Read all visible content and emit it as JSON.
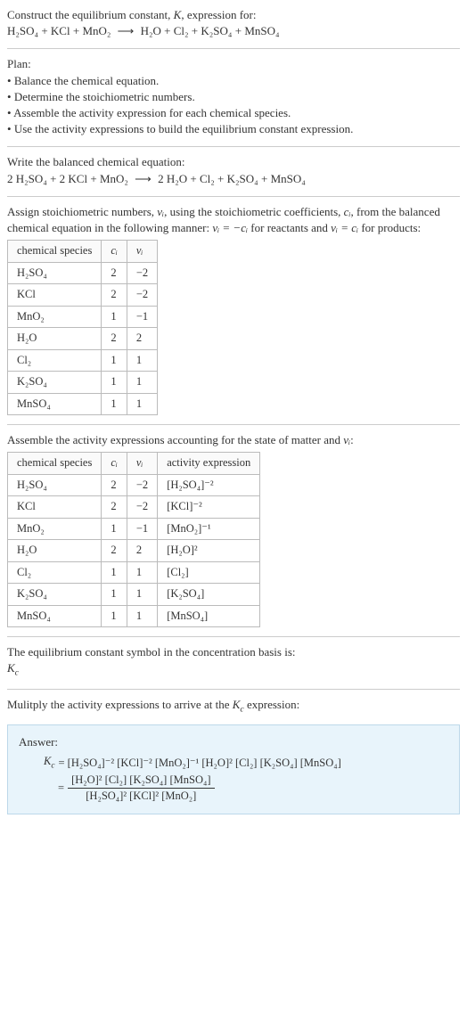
{
  "header": {
    "line1_pre": "Construct the equilibrium constant, ",
    "line1_k": "K",
    "line1_post": ", expression for:",
    "reaction_lhs": [
      "H₂SO₄",
      "KCl",
      "MnO₂"
    ],
    "reaction_rhs": [
      "H₂O",
      "Cl₂",
      "K₂SO₄",
      "MnSO₄"
    ],
    "arrow": "⟶"
  },
  "plan": {
    "title": "Plan:",
    "items": [
      "Balance the chemical equation.",
      "Determine the stoichiometric numbers.",
      "Assemble the activity expression for each chemical species.",
      "Use the activity expressions to build the equilibrium constant expression."
    ]
  },
  "balanced": {
    "title": "Write the balanced chemical equation:",
    "lhs": [
      [
        "2",
        "H₂SO₄"
      ],
      [
        "2",
        "KCl"
      ],
      [
        "",
        "MnO₂"
      ]
    ],
    "rhs": [
      [
        "2",
        "H₂O"
      ],
      [
        "",
        "Cl₂"
      ],
      [
        "",
        "K₂SO₄"
      ],
      [
        "",
        "MnSO₄"
      ]
    ],
    "arrow": "⟶"
  },
  "stoich": {
    "intro_a": "Assign stoichiometric numbers, ",
    "intro_b": ", using the stoichiometric coefficients, ",
    "intro_c": ", from the balanced chemical equation in the following manner: ",
    "intro_d": " for reactants and ",
    "intro_e": " for products:",
    "nu": "νᵢ",
    "ci": "cᵢ",
    "rel_react": "νᵢ = −cᵢ",
    "rel_prod": "νᵢ = cᵢ",
    "headers": [
      "chemical species",
      "cᵢ",
      "νᵢ"
    ],
    "rows": [
      [
        "H₂SO₄",
        "2",
        "−2"
      ],
      [
        "KCl",
        "2",
        "−2"
      ],
      [
        "MnO₂",
        "1",
        "−1"
      ],
      [
        "H₂O",
        "2",
        "2"
      ],
      [
        "Cl₂",
        "1",
        "1"
      ],
      [
        "K₂SO₄",
        "1",
        "1"
      ],
      [
        "MnSO₄",
        "1",
        "1"
      ]
    ]
  },
  "activity": {
    "intro_a": "Assemble the activity expressions accounting for the state of matter and ",
    "intro_b": ":",
    "nu": "νᵢ",
    "headers": [
      "chemical species",
      "cᵢ",
      "νᵢ",
      "activity expression"
    ],
    "rows": [
      [
        "H₂SO₄",
        "2",
        "−2",
        "[H₂SO₄]⁻²"
      ],
      [
        "KCl",
        "2",
        "−2",
        "[KCl]⁻²"
      ],
      [
        "MnO₂",
        "1",
        "−1",
        "[MnO₂]⁻¹"
      ],
      [
        "H₂O",
        "2",
        "2",
        "[H₂O]²"
      ],
      [
        "Cl₂",
        "1",
        "1",
        "[Cl₂]"
      ],
      [
        "K₂SO₄",
        "1",
        "1",
        "[K₂SO₄]"
      ],
      [
        "MnSO₄",
        "1",
        "1",
        "[MnSO₄]"
      ]
    ]
  },
  "kc_symbol": {
    "line1": "The equilibrium constant symbol in the concentration basis is:",
    "symbol": "K_c"
  },
  "multiply": {
    "text_a": "Mulitply the activity expressions to arrive at the ",
    "kc": "K_c",
    "text_b": " expression:"
  },
  "answer": {
    "label": "Answer:",
    "kc": "K_c",
    "flat": "= [H₂SO₄]⁻² [KCl]⁻² [MnO₂]⁻¹ [H₂O]² [Cl₂] [K₂SO₄] [MnSO₄]",
    "eq2": "=",
    "num": "[H₂O]² [Cl₂] [K₂SO₄] [MnSO₄]",
    "den": "[H₂SO₄]² [KCl]² [MnO₂]"
  },
  "sep": "+",
  "colors": {
    "text": "#333333",
    "rule": "#cccccc",
    "border": "#bbbbbb",
    "answer_bg": "#e8f4fb",
    "answer_border": "#bcd8ea"
  }
}
